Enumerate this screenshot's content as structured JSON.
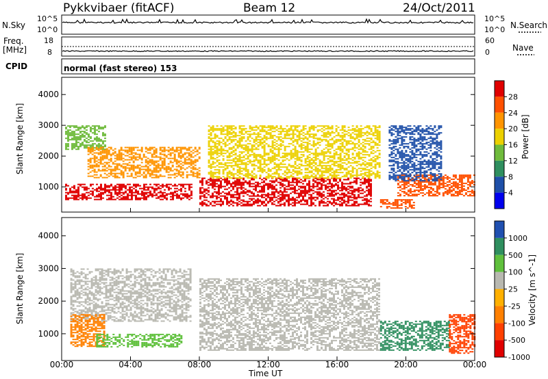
{
  "header": {
    "station": "Pykkvibaer (fitACF)",
    "beam": "Beam 12",
    "date": "24/Oct/2011"
  },
  "strips": {
    "nsky_label": "N.Sky",
    "nsky_ticks": [
      "10^5",
      "10^0"
    ],
    "nsearch_label": "N.Search",
    "nsearch_ticks": [
      "10^5",
      "10^0"
    ],
    "freq_label": "Freq.",
    "freq_unit": "[MHz]",
    "freq_ticks": [
      "18",
      "8"
    ],
    "nave_label": "Nave",
    "nave_ticks": [
      "60",
      "0"
    ],
    "cpid_label": "CPID",
    "cpid_text": "normal (fast stereo) 153"
  },
  "chart_data": [
    {
      "type": "heatmap",
      "title": "",
      "xlabel": "Time UT",
      "ylabel": "Slant Range [km]",
      "x_ticks": [
        "00:00",
        "04:00",
        "08:00",
        "12:00",
        "16:00",
        "20:00",
        "00:00"
      ],
      "xlim_hours": [
        0,
        24
      ],
      "y_ticks": [
        1000,
        2000,
        3000,
        4000
      ],
      "ylim": [
        180,
        4560
      ],
      "colorbar": {
        "label": "Power [dB]",
        "ticks": [
          "28",
          "24",
          "20",
          "16",
          "12",
          "8",
          "4"
        ],
        "colors": [
          "#e00000",
          "#ff5000",
          "#ff9400",
          "#ecd000",
          "#6fbb3c",
          "#2f8f5f",
          "#1e4fa8",
          "#0000ee"
        ]
      },
      "regions": [
        {
          "t0": 0.2,
          "t1": 7.5,
          "r0": 600,
          "r1": 1100,
          "level": 0
        },
        {
          "t0": 0.2,
          "t1": 2.5,
          "r0": 2200,
          "r1": 3000,
          "level": 4
        },
        {
          "t0": 1.5,
          "t1": 8.0,
          "r0": 1300,
          "r1": 2300,
          "level": 2
        },
        {
          "t0": 8.0,
          "t1": 18.0,
          "r0": 400,
          "r1": 1300,
          "level": 0
        },
        {
          "t0": 8.5,
          "t1": 18.5,
          "r0": 1300,
          "r1": 3000,
          "level": 3
        },
        {
          "t0": 18.5,
          "t1": 20.5,
          "r0": 300,
          "r1": 600,
          "level": 1
        },
        {
          "t0": 19.5,
          "t1": 24.0,
          "r0": 700,
          "r1": 1400,
          "level": 1
        },
        {
          "t0": 19.0,
          "t1": 22.0,
          "r0": 1200,
          "r1": 3000,
          "level": 6
        }
      ]
    },
    {
      "type": "heatmap",
      "title": "",
      "xlabel": "Time UT",
      "ylabel": "Slant Range [km]",
      "x_ticks": [
        "00:00",
        "04:00",
        "08:00",
        "12:00",
        "16:00",
        "20:00",
        "00:00"
      ],
      "xlim_hours": [
        0,
        24
      ],
      "y_ticks": [
        1000,
        2000,
        3000,
        4000
      ],
      "ylim": [
        180,
        4560
      ],
      "colorbar": {
        "label": "Velocity [m s^-1]",
        "ticks": [
          "1000",
          "500",
          "100",
          "25",
          "-25",
          "-100",
          "-500",
          "-1000"
        ],
        "colors": [
          "#2050b0",
          "#2f8f5f",
          "#5fc03c",
          "#b8b8b0",
          "#ffb000",
          "#ff8000",
          "#ff4000",
          "#e00000"
        ]
      },
      "regions": [
        {
          "t0": 0.5,
          "t1": 7.5,
          "r0": 1400,
          "r1": 3000,
          "level": 3
        },
        {
          "t0": 0.5,
          "t1": 2.5,
          "r0": 600,
          "r1": 1600,
          "level": 5
        },
        {
          "t0": 2.0,
          "t1": 7.0,
          "r0": 600,
          "r1": 1000,
          "level": 2
        },
        {
          "t0": 8.0,
          "t1": 18.5,
          "r0": 500,
          "r1": 2700,
          "level": 3
        },
        {
          "t0": 18.5,
          "t1": 22.5,
          "r0": 500,
          "r1": 1400,
          "level": 1
        },
        {
          "t0": 22.5,
          "t1": 24.0,
          "r0": 400,
          "r1": 1600,
          "level": 6
        }
      ]
    }
  ]
}
